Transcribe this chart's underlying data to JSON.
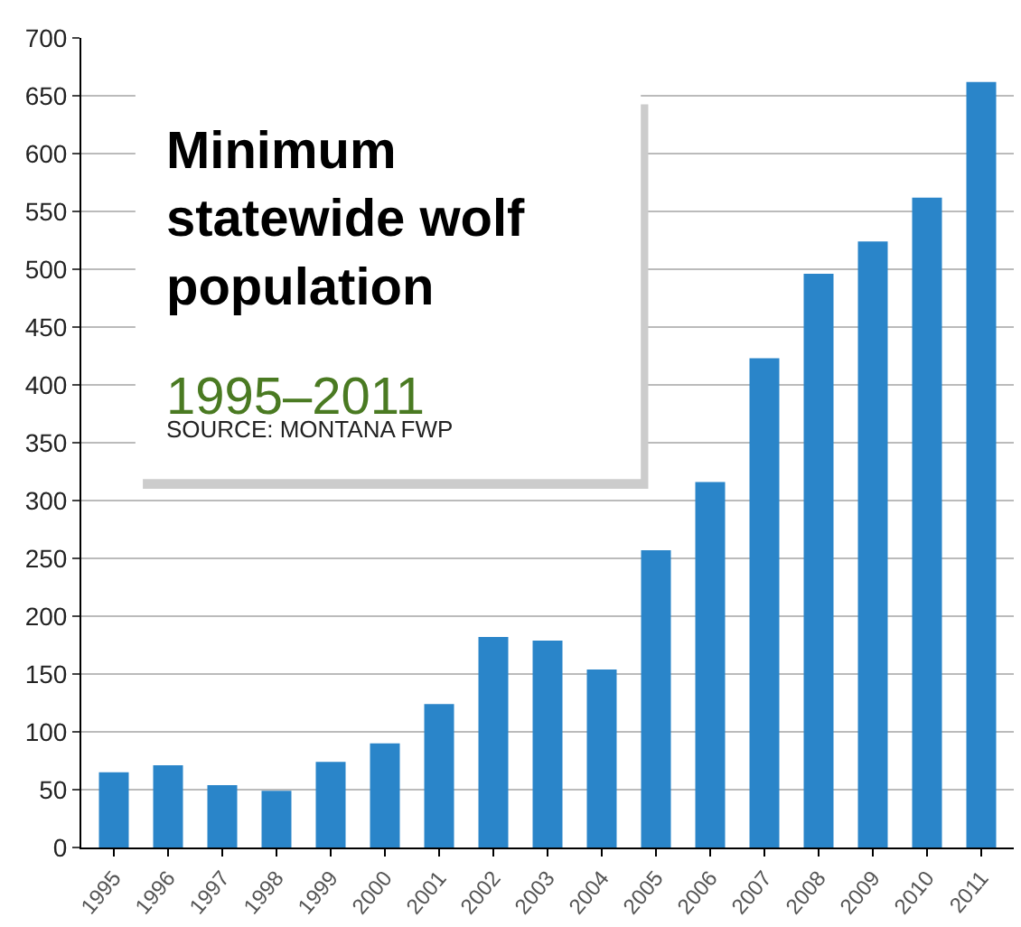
{
  "chart_data": {
    "type": "bar",
    "title": "Minimum statewide wolf population",
    "subtitle": "1995–2011",
    "annotations": [
      "SOURCE: MONTANA FWP"
    ],
    "categories": [
      "1995",
      "1996",
      "1997",
      "1998",
      "1999",
      "2000",
      "2001",
      "2002",
      "2003",
      "2004",
      "2005",
      "2006",
      "2007",
      "2008",
      "2009",
      "2010",
      "2011"
    ],
    "values": [
      65,
      71,
      54,
      49,
      74,
      90,
      124,
      182,
      179,
      154,
      257,
      316,
      423,
      496,
      524,
      562,
      662
    ],
    "color": "#2a85c9",
    "ylim": [
      0,
      700
    ],
    "yticks": [
      0,
      50,
      100,
      150,
      200,
      250,
      300,
      350,
      400,
      450,
      500,
      550,
      600,
      650,
      700
    ],
    "grid": "y"
  }
}
